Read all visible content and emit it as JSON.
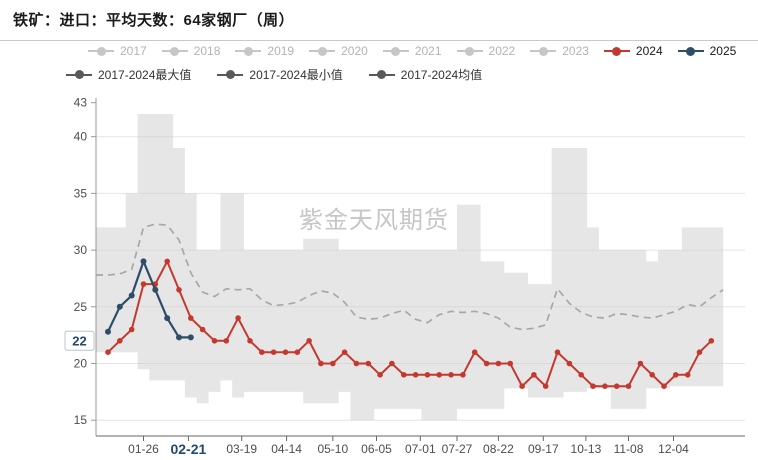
{
  "title": "铁矿：进口：平均天数：64家钢厂（周）",
  "watermark": "紫金天风期货",
  "colors": {
    "red_2024": "#c4392f",
    "navy_2025": "#2e4d69",
    "band_fill": "#e6e6e6",
    "mean_dash": "#a8a8a8",
    "legend_gray_marker": "#c6c6c6",
    "legend_gray_text": "#b3b3b3",
    "legend_dark_marker": "#595959",
    "axis_text": "#4d4d4d",
    "highlight_navy": "#24496b"
  },
  "legend": {
    "years_row": [
      {
        "label": "2017",
        "color": "#c6c6c6",
        "text_color": "#b3b3b3"
      },
      {
        "label": "2018",
        "color": "#c6c6c6",
        "text_color": "#b3b3b3"
      },
      {
        "label": "2019",
        "color": "#c6c6c6",
        "text_color": "#b3b3b3"
      },
      {
        "label": "2020",
        "color": "#c6c6c6",
        "text_color": "#b3b3b3"
      },
      {
        "label": "2021",
        "color": "#c6c6c6",
        "text_color": "#b3b3b3"
      },
      {
        "label": "2022",
        "color": "#c6c6c6",
        "text_color": "#b3b3b3"
      },
      {
        "label": "2023",
        "color": "#c6c6c6",
        "text_color": "#b3b3b3"
      },
      {
        "label": "2024",
        "color": "#c4392f",
        "text_color": "#1a1a1a"
      },
      {
        "label": "2025",
        "color": "#2e4d69",
        "text_color": "#1a1a1a"
      }
    ],
    "stats_row": [
      {
        "label": "2017-2024最大值",
        "color": "#595959",
        "text_color": "#333333"
      },
      {
        "label": "2017-2024最小值",
        "color": "#595959",
        "text_color": "#333333"
      },
      {
        "label": "2017-2024均值",
        "color": "#595959",
        "text_color": "#333333"
      }
    ]
  },
  "axes": {
    "y_ticks": [
      43,
      40,
      35,
      30,
      25,
      20,
      15
    ],
    "x_tick_labels": [
      "01-26",
      "02-21",
      "03-19",
      "04-14",
      "05-10",
      "06-05",
      "07-01",
      "07-27",
      "08-22",
      "09-17",
      "10-13",
      "11-08",
      "12-04"
    ],
    "y_latest_label": "22",
    "x_current_label": "02-21"
  },
  "chart_data": {
    "type": "line",
    "title": "铁矿：进口：平均天数：64家钢厂（周）",
    "x_unit": "week_of_year",
    "n_weeks": 53,
    "ylim": [
      15,
      43
    ],
    "y_ticks": [
      43,
      40,
      35,
      30,
      25,
      20,
      15
    ],
    "grid": true,
    "legend_position": "top",
    "x_tick_labels": [
      "01-26",
      "02-21",
      "03-19",
      "04-14",
      "05-10",
      "06-05",
      "07-01",
      "07-27",
      "08-22",
      "09-17",
      "10-13",
      "11-08",
      "12-04"
    ],
    "x_tick_weeks": [
      4,
      7.8,
      12.3,
      16.1,
      20,
      23.7,
      27.4,
      30.5,
      34,
      37.8,
      41.4,
      45,
      48.8
    ],
    "series": [
      {
        "name": "2017-2024最大值",
        "role": "band_top",
        "style": "step-area-top",
        "values": [
          32,
          32,
          35,
          42,
          42,
          42,
          39,
          35,
          30,
          30,
          35,
          35,
          30,
          30,
          30,
          30,
          30,
          31,
          31,
          31,
          30,
          30,
          30,
          30,
          30,
          30,
          30,
          30,
          30,
          30,
          34,
          34,
          29,
          29,
          28,
          28,
          27,
          27,
          39,
          39,
          39,
          32,
          30,
          30,
          30,
          30,
          29,
          30,
          30,
          32,
          32,
          32,
          32
        ]
      },
      {
        "name": "2017-2024最小值",
        "role": "band_bottom",
        "style": "step-area-bottom",
        "values": [
          21,
          21,
          21,
          19.5,
          18.5,
          18.5,
          18.5,
          17,
          16.5,
          17.5,
          18.5,
          17,
          17.5,
          17.5,
          17.5,
          17.5,
          17.5,
          16.5,
          16.5,
          16.5,
          17.5,
          15,
          15,
          16,
          16,
          16,
          16,
          15,
          15,
          15,
          16,
          16,
          16,
          16,
          17.8,
          17.8,
          17,
          17,
          17,
          17.5,
          17.5,
          17.8,
          17.8,
          16,
          16,
          16,
          17.8,
          17.8,
          18,
          18,
          18,
          18,
          18
        ]
      },
      {
        "name": "2017-2024均值",
        "role": "mean",
        "style": "dashed",
        "values": [
          27.8,
          27.9,
          28.3,
          32,
          32.3,
          32.2,
          30.9,
          28,
          26.3,
          25.9,
          26.6,
          26.5,
          26.6,
          25.6,
          25.1,
          25.2,
          25.4,
          26,
          26.4,
          26.2,
          25.4,
          24.1,
          23.9,
          24,
          24.4,
          24.7,
          23.9,
          23.6,
          24.3,
          24.6,
          24.5,
          24.6,
          24.4,
          24,
          23.2,
          23,
          23.1,
          23.4,
          26.6,
          25.3,
          24.5,
          24.1,
          24,
          24.4,
          24.3,
          24.1,
          24,
          24.3,
          24.6,
          25.2,
          25,
          25.8,
          26.5
        ]
      },
      {
        "name": "2024",
        "role": "year_line",
        "style": "solid-markers",
        "color": "#c4392f",
        "values": [
          21,
          22,
          23,
          27,
          27,
          29,
          26.5,
          24,
          23,
          22,
          22,
          24,
          22,
          21,
          21,
          21,
          21,
          22,
          20,
          20,
          21,
          20,
          20,
          19,
          20,
          19,
          19,
          19,
          19,
          19,
          19,
          21,
          20,
          20,
          20,
          18,
          19,
          18,
          21,
          20,
          19,
          18,
          18,
          18,
          18,
          20,
          19,
          18,
          19,
          19,
          21,
          22
        ]
      },
      {
        "name": "2025",
        "role": "year_line",
        "style": "solid-markers",
        "color": "#2e4d69",
        "values": [
          22.8,
          25,
          26,
          29,
          26.5,
          24,
          22.3,
          22.3
        ]
      }
    ],
    "annotations": {
      "y_latest": {
        "text": "22",
        "value": 22,
        "series": "2025"
      },
      "x_current": {
        "text": "02-21",
        "week": 7.8
      }
    }
  }
}
